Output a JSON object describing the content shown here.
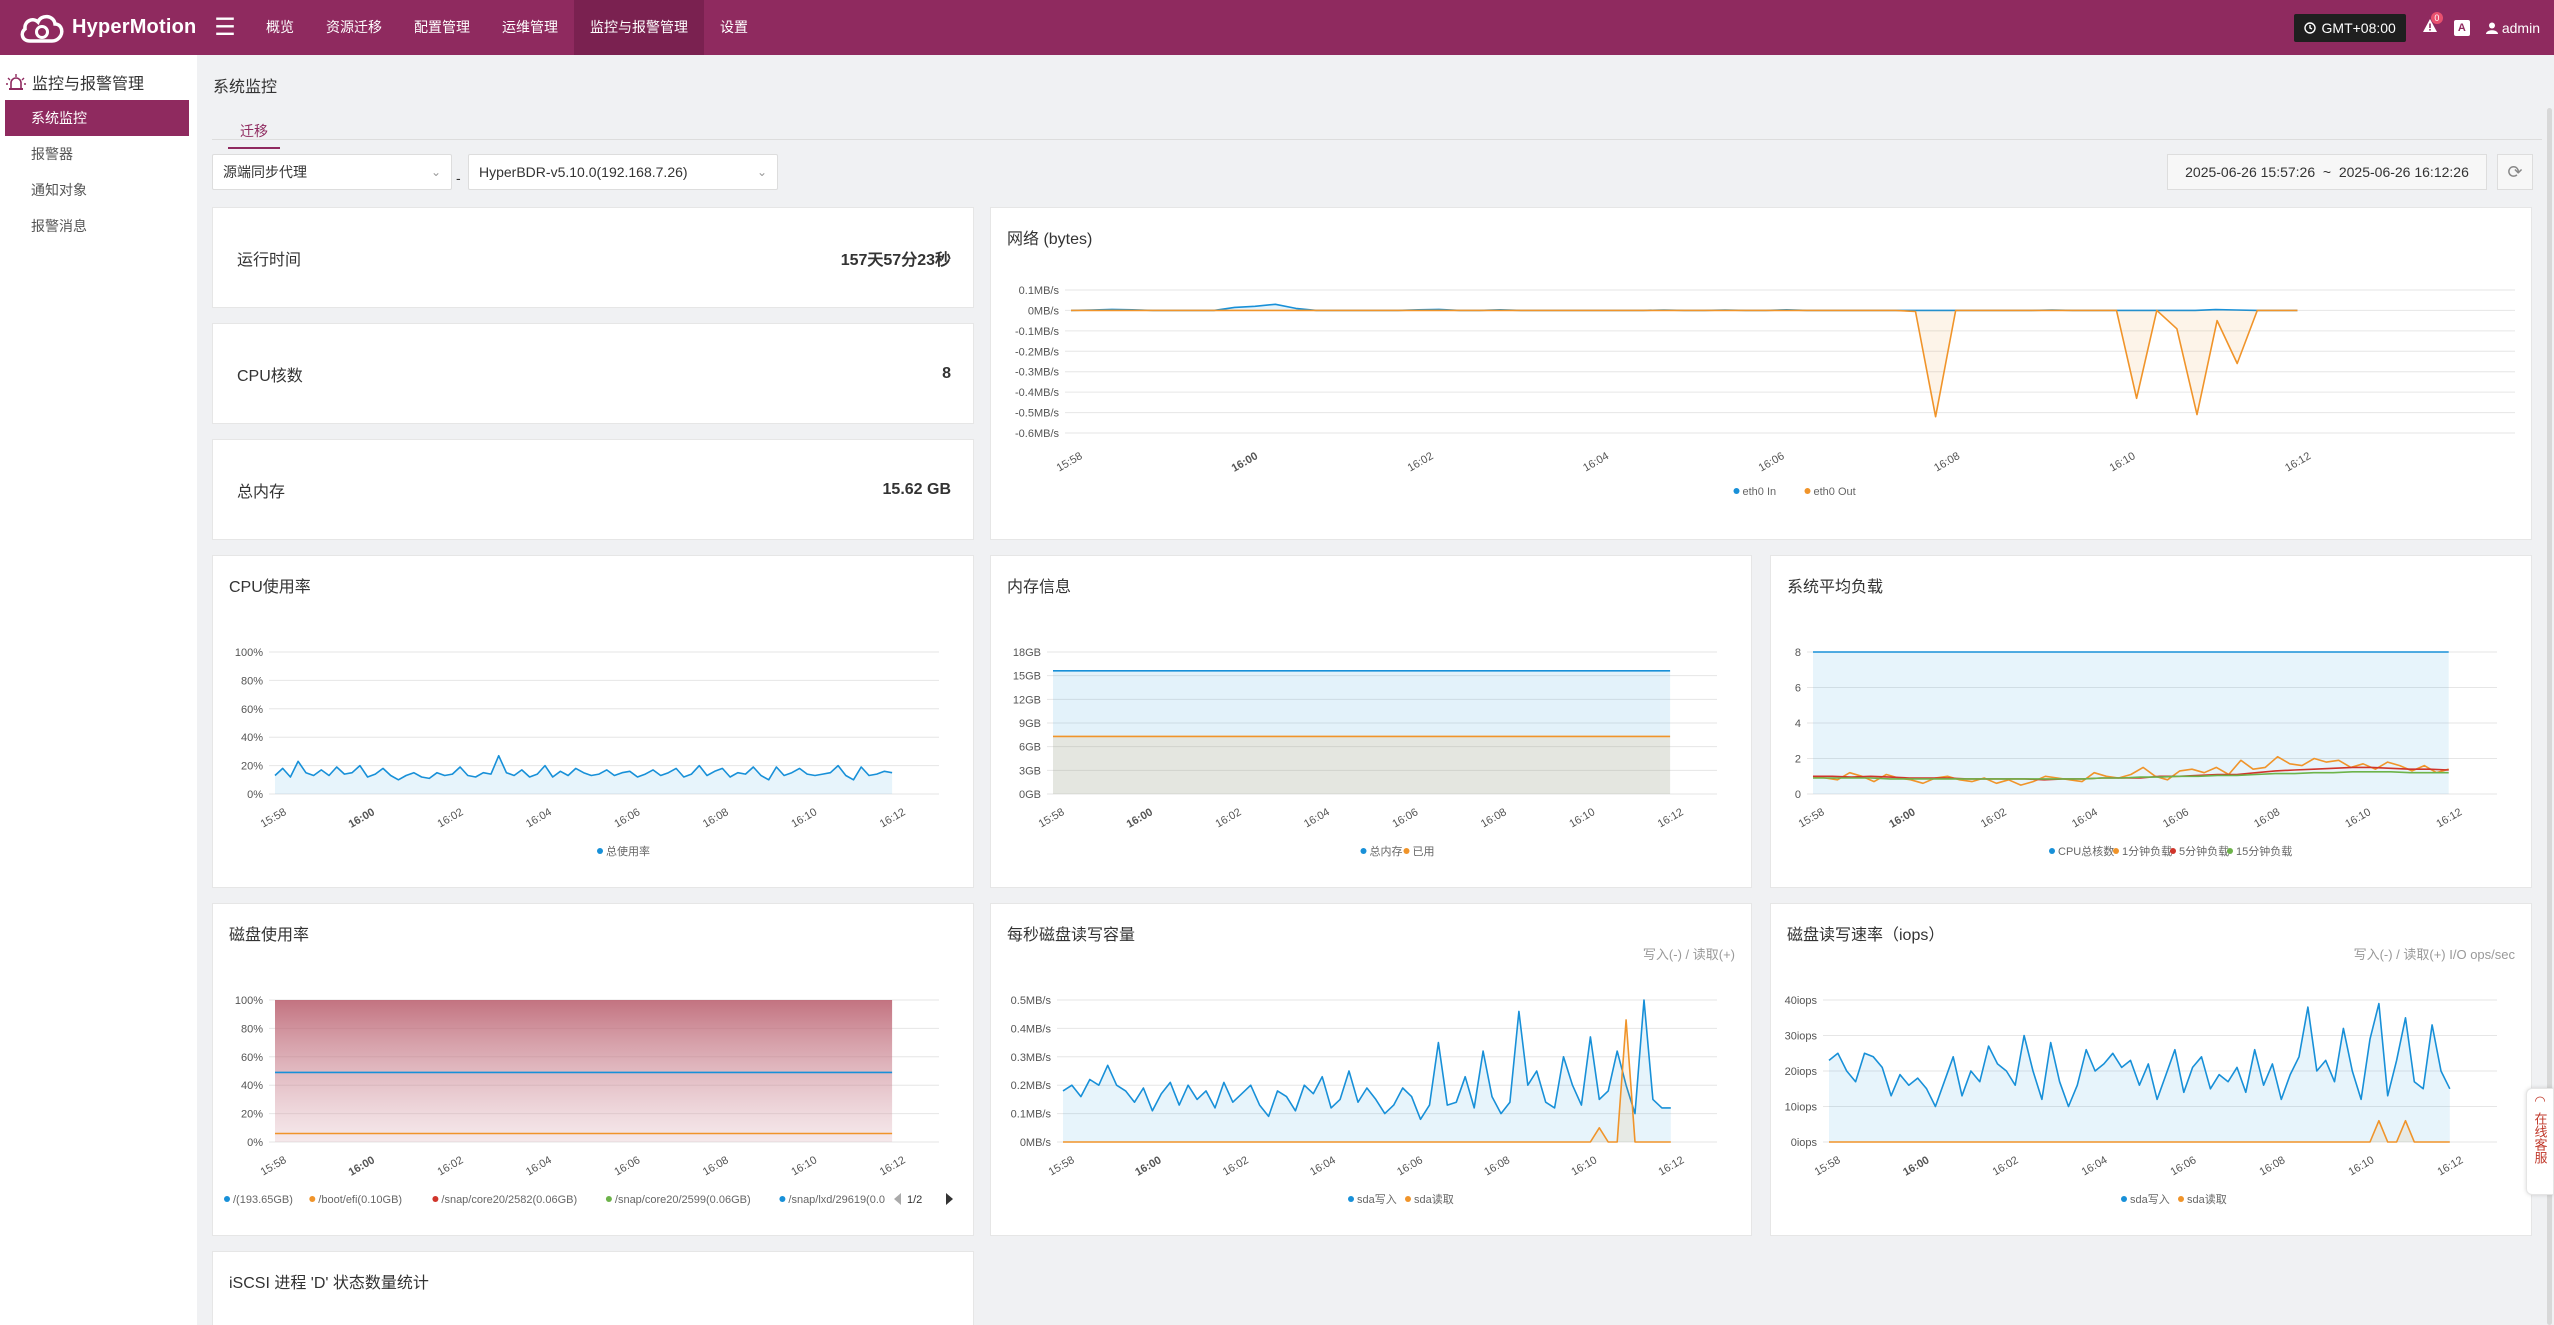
{
  "app": {
    "name": "HyperMotion"
  },
  "nav": [
    "概览",
    "资源迁移",
    "配置管理",
    "运维管理",
    "监控与报警管理",
    "设置"
  ],
  "topbar": {
    "timezone": "GMT+08:00",
    "notifications": "0",
    "lang_icon": "A",
    "user": "admin"
  },
  "sidebar": {
    "title": "监控与报警管理",
    "items": [
      "系统监控",
      "报警器",
      "通知对象",
      "报警消息"
    ]
  },
  "page": {
    "title": "系统监控",
    "tab": "迁移"
  },
  "filters": {
    "agent": "源端同步代理",
    "separator": "-",
    "host": "HyperBDR-v5.10.0(192.168.7.26)",
    "time_range": "2025-06-26 15:57:26  ~  2025-06-26 16:12:26"
  },
  "stats": [
    {
      "label": "运行时间",
      "value": "157天57分23秒"
    },
    {
      "label": "CPU核数",
      "value": "8"
    },
    {
      "label": "总内存",
      "value": "15.62 GB"
    }
  ],
  "cards": {
    "network": "网络 (bytes)",
    "cpu": "CPU使用率",
    "memory": "内存信息",
    "load": "系统平均负载",
    "disk": "磁盘使用率",
    "diskio": "每秒磁盘读写容量",
    "iops": "磁盘读写速率（iops）",
    "iscsi": "iSCSI 进程 'D' 状态数量统计",
    "diskio_sub": "写入(-) / 读取(+)",
    "iops_sub": "写入(-) / 读取(+) I/O ops/sec"
  },
  "support": "在线客服",
  "colors": {
    "brand": "#8f2a5f",
    "blue": "#1890d8",
    "orange": "#f0942a",
    "red": "#d0352b",
    "green": "#6db34a"
  },
  "chart_data": [
    {
      "id": "network",
      "type": "line",
      "x_ticks": [
        "15:58",
        "16:00",
        "16:02",
        "16:04",
        "16:06",
        "16:08",
        "16:10",
        "16:12"
      ],
      "y_ticks": [
        "0.1MB/s",
        "0MB/s",
        "-0.1MB/s",
        "-0.2MB/s",
        "-0.3MB/s",
        "-0.4MB/s",
        "-0.5MB/s",
        "-0.6MB/s"
      ],
      "ylim": [
        -0.6,
        0.1
      ],
      "series": [
        {
          "name": "eth0 In",
          "color": "#1890d8",
          "values": [
            0,
            0.002,
            0.005,
            0.003,
            0,
            0,
            0,
            0,
            0.015,
            0.02,
            0.03,
            0.01,
            0,
            0,
            0,
            0,
            0,
            0.003,
            0.005,
            0,
            0,
            0.003,
            0,
            0,
            0,
            0,
            0,
            0,
            0,
            0.002,
            0,
            0,
            0.002,
            0,
            0,
            0.003,
            0,
            0,
            0,
            0,
            0,
            0,
            0,
            0,
            0,
            0,
            0,
            0,
            0.002,
            0,
            0,
            0,
            0,
            0,
            0,
            0,
            0.004,
            0.002,
            0,
            0,
            0
          ]
        },
        {
          "name": "eth0 Out",
          "color": "#f0942a",
          "values": [
            0,
            0,
            0,
            0,
            0,
            0,
            0,
            0,
            0,
            0,
            0,
            0,
            0,
            0,
            0,
            0,
            0,
            0,
            0,
            0,
            0,
            0,
            0,
            0,
            0,
            0,
            0,
            0,
            0,
            0,
            0,
            0,
            0,
            0,
            0,
            0,
            0,
            0,
            0,
            0,
            0,
            0,
            -0.005,
            -0.52,
            0,
            0,
            0,
            0,
            0,
            0,
            0,
            0,
            0,
            -0.43,
            0,
            -0.09,
            -0.51,
            -0.05,
            -0.26,
            0,
            0,
            0
          ]
        }
      ]
    },
    {
      "id": "cpu",
      "type": "line",
      "x_ticks": [
        "15:58",
        "16:00",
        "16:02",
        "16:04",
        "16:06",
        "16:08",
        "16:10",
        "16:12"
      ],
      "y_ticks": [
        "100%",
        "80%",
        "60%",
        "40%",
        "20%",
        "0%"
      ],
      "ylim": [
        0,
        100
      ],
      "series": [
        {
          "name": "总使用率",
          "color": "#1890d8",
          "values": [
            13,
            18,
            12,
            23,
            15,
            13,
            17,
            13,
            19,
            14,
            15,
            20,
            12,
            14,
            18,
            13,
            10,
            13,
            15,
            12,
            11,
            15,
            13,
            14,
            19,
            13,
            12,
            15,
            14,
            27,
            15,
            13,
            17,
            12,
            14,
            20,
            12,
            16,
            13,
            18,
            15,
            13,
            14,
            17,
            13,
            15,
            16,
            12,
            14,
            17,
            13,
            15,
            18,
            12,
            14,
            20,
            13,
            16,
            18,
            12,
            15,
            14,
            19,
            13,
            10,
            19,
            13,
            15,
            18,
            14,
            13,
            14,
            15,
            20,
            13,
            10,
            19,
            13,
            14,
            16,
            15
          ]
        }
      ]
    },
    {
      "id": "memory",
      "type": "area",
      "x_ticks": [
        "15:58",
        "16:00",
        "16:02",
        "16:04",
        "16:06",
        "16:08",
        "16:10",
        "16:12"
      ],
      "y_ticks": [
        "18GB",
        "15GB",
        "12GB",
        "9GB",
        "6GB",
        "3GB",
        "0GB"
      ],
      "ylim": [
        0,
        18
      ],
      "series": [
        {
          "name": "总内存",
          "color": "#1890d8",
          "values": [
            15.62,
            15.62,
            15.62,
            15.62,
            15.62,
            15.62,
            15.62,
            15.62,
            15.62,
            15.62,
            15.62,
            15.62,
            15.62,
            15.62,
            15.62,
            15.62
          ]
        },
        {
          "name": "已用",
          "color": "#f0942a",
          "values": [
            7.3,
            7.3,
            7.3,
            7.3,
            7.3,
            7.3,
            7.3,
            7.3,
            7.3,
            7.3,
            7.3,
            7.3,
            7.3,
            7.3,
            7.3
          ]
        }
      ]
    },
    {
      "id": "load",
      "type": "line",
      "x_ticks": [
        "15:58",
        "16:00",
        "16:02",
        "16:04",
        "16:06",
        "16:08",
        "16:10",
        "16:12"
      ],
      "y_ticks": [
        "8",
        "6",
        "4",
        "2",
        "0"
      ],
      "ylim": [
        0,
        8
      ],
      "series": [
        {
          "name": "CPU总核数",
          "color": "#1890d8",
          "values": [
            8,
            8,
            8,
            8,
            8,
            8,
            8,
            8
          ]
        },
        {
          "name": "1分钟负载",
          "color": "#f0942a",
          "values": [
            1.0,
            0.9,
            0.8,
            1.2,
            1.0,
            0.7,
            1.1,
            0.9,
            0.8,
            0.6,
            0.9,
            1.0,
            0.8,
            0.7,
            0.9,
            0.6,
            0.8,
            0.5,
            0.7,
            1.0,
            0.9,
            0.8,
            0.7,
            1.2,
            1.0,
            0.9,
            1.1,
            1.5,
            1.0,
            0.8,
            1.3,
            1.4,
            1.2,
            1.5,
            1.1,
            1.9,
            1.4,
            1.5,
            2.1,
            1.7,
            1.6,
            2.0,
            1.8,
            1.9,
            1.5,
            1.7,
            1.4,
            1.8,
            1.6,
            1.3,
            1.6,
            1.2,
            1.4
          ]
        },
        {
          "name": "5分钟负载",
          "color": "#d0352b",
          "values": [
            1.0,
            1.0,
            0.95,
            1.0,
            0.95,
            0.9,
            0.9,
            0.9,
            0.85,
            0.85,
            0.85,
            0.85,
            0.8,
            0.85,
            0.85,
            0.9,
            0.9,
            0.9,
            1.0,
            1.0,
            1.05,
            1.1,
            1.1,
            1.2,
            1.3,
            1.35,
            1.4,
            1.45,
            1.5,
            1.5,
            1.45,
            1.4,
            1.4,
            1.35
          ]
        },
        {
          "name": "15分钟负载",
          "color": "#6db34a",
          "values": [
            0.9,
            0.9,
            0.9,
            0.9,
            0.85,
            0.85,
            0.85,
            0.85,
            0.85,
            0.85,
            0.85,
            0.85,
            0.85,
            0.85,
            0.85,
            0.9,
            0.9,
            0.95,
            0.95,
            1.0,
            1.0,
            1.05,
            1.05,
            1.1,
            1.15,
            1.15,
            1.2,
            1.2,
            1.25,
            1.25,
            1.25,
            1.2,
            1.2,
            1.2
          ]
        }
      ]
    },
    {
      "id": "disk",
      "type": "line",
      "x_ticks": [
        "15:58",
        "16:00",
        "16:02",
        "16:04",
        "16:06",
        "16:08",
        "16:10",
        "16:12"
      ],
      "y_ticks": [
        "100%",
        "80%",
        "60%",
        "40%",
        "20%",
        "0%"
      ],
      "ylim": [
        0,
        100
      ],
      "page": "1/2",
      "series": [
        {
          "name": "/(193.65GB)",
          "color": "#1890d8",
          "values": [
            49,
            49
          ]
        },
        {
          "name": "/boot/efi(0.10GB)",
          "color": "#f0942a",
          "values": [
            6,
            6
          ]
        },
        {
          "name": "/snap/core20/2582(0.06GB)",
          "color": "#d0352b",
          "values": [
            100,
            100
          ]
        },
        {
          "name": "/snap/core20/2599(0.06GB)",
          "color": "#6db34a",
          "values": [
            100,
            100
          ]
        },
        {
          "name": "/snap/lxd/29619(0.0",
          "color": "#1890d8",
          "values": [
            100,
            100
          ]
        }
      ]
    },
    {
      "id": "diskio",
      "type": "line",
      "x_ticks": [
        "15:58",
        "16:00",
        "16:02",
        "16:04",
        "16:06",
        "16:08",
        "16:10",
        "16:12"
      ],
      "y_ticks": [
        "0.5MB/s",
        "0.4MB/s",
        "0.3MB/s",
        "0.2MB/s",
        "0.1MB/s",
        "0MB/s"
      ],
      "ylim": [
        0,
        0.5
      ],
      "series": [
        {
          "name": "sda写入",
          "color": "#1890d8",
          "values": [
            0.18,
            0.2,
            0.16,
            0.22,
            0.2,
            0.27,
            0.2,
            0.18,
            0.14,
            0.19,
            0.11,
            0.17,
            0.21,
            0.13,
            0.2,
            0.15,
            0.18,
            0.12,
            0.21,
            0.14,
            0.17,
            0.2,
            0.13,
            0.09,
            0.18,
            0.16,
            0.11,
            0.2,
            0.17,
            0.23,
            0.12,
            0.15,
            0.25,
            0.14,
            0.19,
            0.15,
            0.1,
            0.13,
            0.19,
            0.16,
            0.08,
            0.13,
            0.35,
            0.13,
            0.14,
            0.23,
            0.12,
            0.32,
            0.16,
            0.1,
            0.14,
            0.46,
            0.2,
            0.25,
            0.14,
            0.12,
            0.3,
            0.2,
            0.13,
            0.37,
            0.15,
            0.18,
            0.32,
            0.2,
            0.1,
            0.5,
            0.15,
            0.12,
            0.12
          ]
        },
        {
          "name": "sda读取",
          "color": "#f0942a",
          "values": [
            0,
            0,
            0,
            0,
            0,
            0,
            0,
            0,
            0,
            0,
            0,
            0,
            0,
            0,
            0,
            0,
            0,
            0,
            0,
            0,
            0,
            0,
            0,
            0,
            0,
            0,
            0,
            0,
            0,
            0,
            0,
            0,
            0,
            0,
            0,
            0,
            0,
            0,
            0,
            0,
            0,
            0,
            0,
            0,
            0,
            0,
            0,
            0,
            0,
            0,
            0,
            0,
            0,
            0,
            0,
            0,
            0,
            0,
            0,
            0,
            0.05,
            0,
            0,
            0.43,
            0,
            0,
            0,
            0,
            0
          ]
        }
      ]
    },
    {
      "id": "iops",
      "type": "line",
      "x_ticks": [
        "15:58",
        "16:00",
        "16:02",
        "16:04",
        "16:06",
        "16:08",
        "16:10",
        "16:12"
      ],
      "y_ticks": [
        "40iops",
        "30iops",
        "20iops",
        "10iops",
        "0iops"
      ],
      "ylim": [
        0,
        40
      ],
      "series": [
        {
          "name": "sda写入",
          "color": "#1890d8",
          "values": [
            23,
            25,
            20,
            17,
            25,
            24,
            21,
            13,
            19,
            16,
            18,
            15,
            10,
            17,
            24,
            13,
            20,
            17,
            27,
            22,
            20,
            16,
            30,
            20,
            12,
            28,
            17,
            10,
            16,
            26,
            20,
            22,
            25,
            21,
            23,
            16,
            22,
            12,
            19,
            26,
            14,
            21,
            24,
            15,
            19,
            17,
            21,
            14,
            26,
            16,
            22,
            12,
            19,
            24,
            38,
            20,
            23,
            17,
            32,
            20,
            12,
            29,
            39,
            13,
            23,
            35,
            17,
            15,
            33,
            20,
            15
          ]
        },
        {
          "name": "sda读取",
          "color": "#f0942a",
          "values": [
            0,
            0,
            0,
            0,
            0,
            0,
            0,
            0,
            0,
            0,
            0,
            0,
            0,
            0,
            0,
            0,
            0,
            0,
            0,
            0,
            0,
            0,
            0,
            0,
            0,
            0,
            0,
            0,
            0,
            0,
            0,
            0,
            0,
            0,
            0,
            0,
            0,
            0,
            0,
            0,
            0,
            0,
            0,
            0,
            0,
            0,
            0,
            0,
            0,
            0,
            0,
            0,
            0,
            0,
            0,
            0,
            0,
            0,
            0,
            0,
            0,
            0,
            6,
            0,
            0,
            6,
            0,
            0,
            0,
            0,
            0
          ]
        }
      ]
    }
  ]
}
